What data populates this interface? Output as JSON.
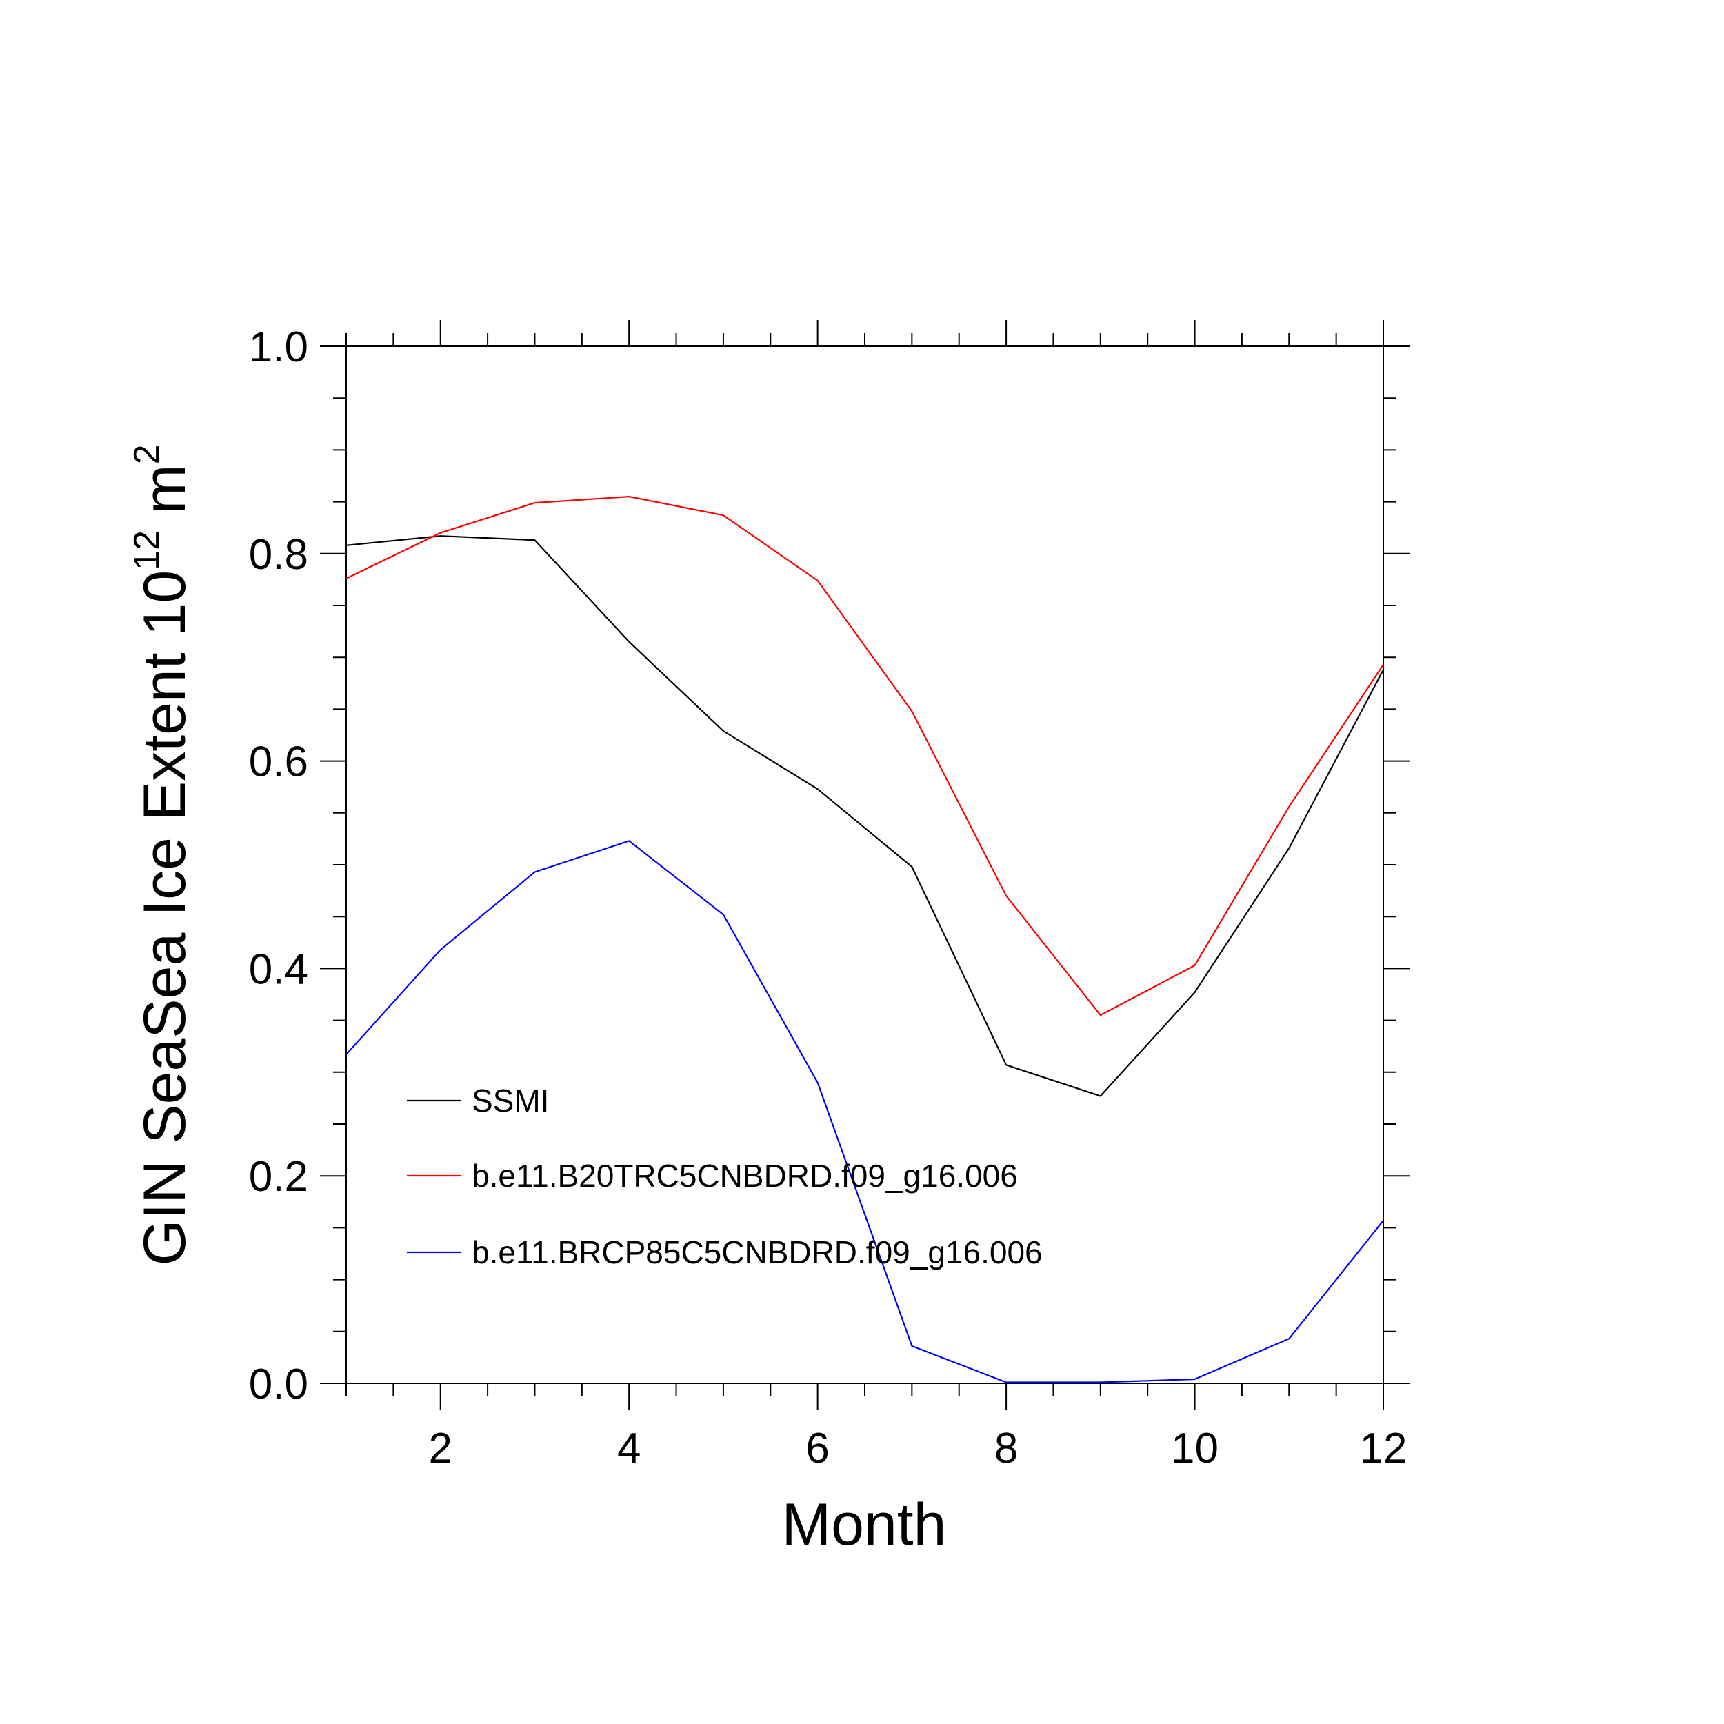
{
  "chart_data": {
    "type": "line",
    "title": "",
    "xlabel": "Month",
    "ylabel": "GIN SeaSea Ice Extent 10",
    "ylabel_superscript": "12",
    "ylabel_unit": " m",
    "ylabel_unit_superscript": "2",
    "xlim": [
      1,
      12
    ],
    "ylim": [
      0,
      1
    ],
    "x_ticks": [
      2,
      4,
      6,
      8,
      10,
      12
    ],
    "x_tick_labels": [
      "2",
      "4",
      "6",
      "8",
      "10",
      "12"
    ],
    "y_ticks": [
      0,
      0.2,
      0.4,
      0.6,
      0.8,
      1.0
    ],
    "y_tick_labels": [
      "0.0",
      "0.2",
      "0.4",
      "0.6",
      "0.8",
      "1.0"
    ],
    "x": [
      1,
      2,
      3,
      4,
      5,
      6,
      7,
      8,
      9,
      10,
      11,
      12
    ],
    "grid": false,
    "legend_position": "lower-left",
    "series": [
      {
        "name": "SSMI",
        "color": "#000000",
        "values": [
          0.808,
          0.817,
          0.813,
          0.715,
          0.629,
          0.573,
          0.498,
          0.307,
          0.277,
          0.377,
          0.516,
          0.688
        ]
      },
      {
        "name": "b.e11.B20TRC5CNBDRD.f09_g16.006",
        "color": "#ff0000",
        "values": [
          0.776,
          0.82,
          0.849,
          0.855,
          0.837,
          0.774,
          0.648,
          0.47,
          0.355,
          0.403,
          0.556,
          0.693
        ]
      },
      {
        "name": "b.e11.BRCP85C5CNBDRD.f09_g16.006",
        "color": "#0000ff",
        "values": [
          0.317,
          0.418,
          0.493,
          0.523,
          0.452,
          0.29,
          0.036,
          0.001,
          0.001,
          0.004,
          0.043,
          0.157
        ]
      }
    ]
  }
}
